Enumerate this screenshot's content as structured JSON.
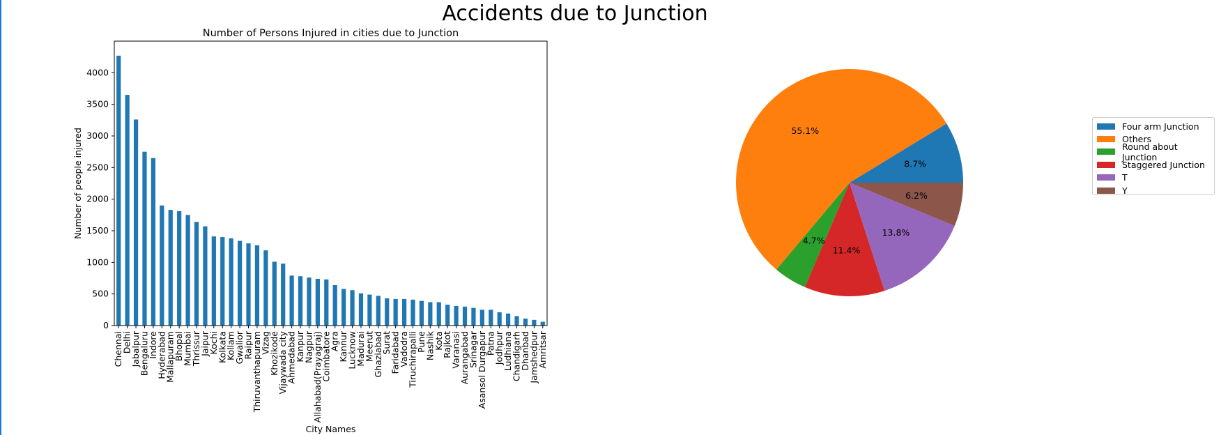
{
  "figure": {
    "suptitle": "Accidents due to Junction"
  },
  "chart_data": [
    {
      "type": "bar",
      "title": "Number of Persons Injured in cities due to Junction",
      "xlabel": "City Names",
      "ylabel": "Number of people injured",
      "ylim": [
        0,
        4500
      ],
      "yticks": [
        0,
        500,
        1000,
        1500,
        2000,
        2500,
        3000,
        3500,
        4000
      ],
      "color": "#1f77b4",
      "categories": [
        "Chennai",
        "Delhi",
        "Jabalpur",
        "Bengaluru",
        "Indore",
        "Hyderabad",
        "Mallapuram",
        "Bhopal",
        "Mumbai",
        "Thrissur",
        "Jaipur",
        "Kochi",
        "Kolkata",
        "Kollam",
        "Gwalior",
        "Raipur",
        "Thiruvanthapuram",
        "Vizag",
        "Khozikode",
        "Vijaywada city",
        "Ahmedabad",
        "Kanpur",
        "Nagpur",
        "Allahabad(Prayagraj)",
        "Coimbatore",
        "Agra",
        "Kannur",
        "Lucknow",
        "Madurai",
        "Meerut",
        "Ghaziabad",
        "Surat",
        "Faridabad",
        "Vadodra",
        "Tiruchirapalli",
        "Pune",
        "Nashik",
        "Kota",
        "Rajkot",
        "Varanasi",
        "Aurangabad",
        "Srinagar",
        "Asansol Durgapur",
        "Patna",
        "Jodhpur",
        "Ludhiana",
        "Chandigarh",
        "Dhanbad",
        "Jamshedpur",
        "Amritsar"
      ],
      "values": [
        4270,
        3650,
        3260,
        2750,
        2650,
        1900,
        1830,
        1810,
        1750,
        1640,
        1570,
        1410,
        1400,
        1380,
        1340,
        1300,
        1270,
        1190,
        1010,
        980,
        790,
        780,
        760,
        740,
        730,
        640,
        580,
        560,
        510,
        490,
        470,
        430,
        420,
        420,
        410,
        390,
        370,
        370,
        330,
        310,
        300,
        280,
        250,
        250,
        210,
        190,
        150,
        110,
        90,
        60
      ]
    },
    {
      "type": "pie",
      "labels": [
        "Four arm Junction",
        "Others",
        "Round about Junction",
        "Staggered Junction",
        "T",
        "Y"
      ],
      "values": [
        8.7,
        55.1,
        4.7,
        11.4,
        13.8,
        6.2
      ],
      "pct_labels": [
        "8.7%",
        "55.1%",
        "4.7%",
        "11.4%",
        "13.8%",
        "6.2%"
      ],
      "colors": [
        "#1f77b4",
        "#ff7f0e",
        "#2ca02c",
        "#d62728",
        "#9467bd",
        "#8c564b"
      ],
      "legend_position": "right"
    }
  ]
}
